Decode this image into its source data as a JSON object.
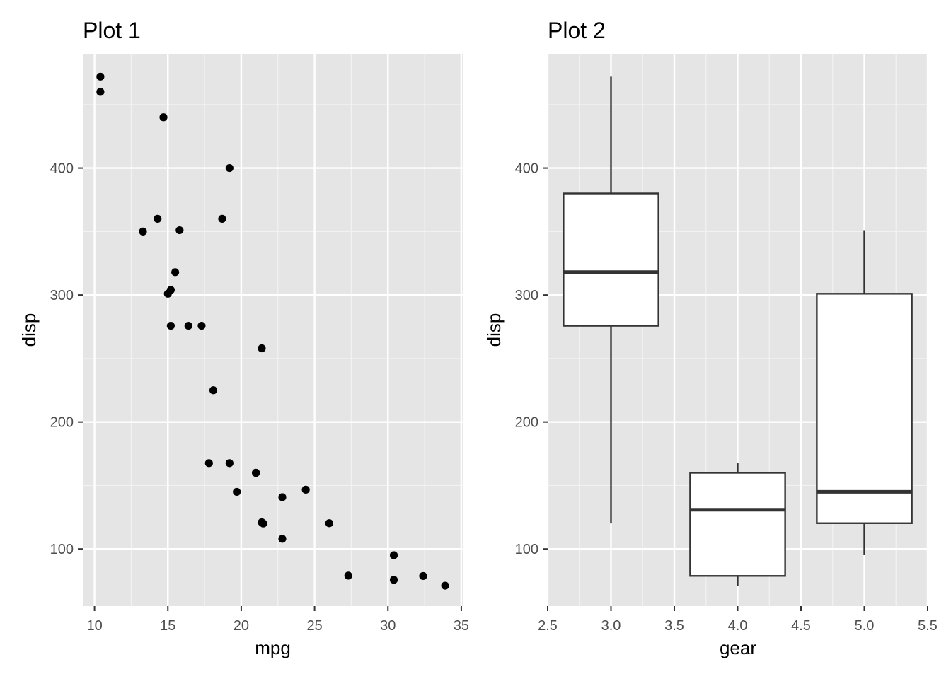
{
  "chart_data": [
    {
      "type": "scatter",
      "title": "Plot 1",
      "xlabel": "mpg",
      "ylabel": "disp",
      "xlim": [
        9.2,
        35.1
      ],
      "ylim": [
        55,
        490
      ],
      "x_ticks": [
        "10",
        "15",
        "20",
        "25",
        "30",
        "35"
      ],
      "y_ticks": [
        "100",
        "200",
        "300",
        "400"
      ],
      "grid": true,
      "panel_background": "#e5e5e5",
      "point_color": "#000000",
      "points": [
        {
          "x": 21.0,
          "y": 160
        },
        {
          "x": 21.0,
          "y": 160
        },
        {
          "x": 22.8,
          "y": 108
        },
        {
          "x": 21.4,
          "y": 258
        },
        {
          "x": 18.7,
          "y": 360
        },
        {
          "x": 18.1,
          "y": 225
        },
        {
          "x": 14.3,
          "y": 360
        },
        {
          "x": 24.4,
          "y": 146.7
        },
        {
          "x": 22.8,
          "y": 140.8
        },
        {
          "x": 19.2,
          "y": 167.6
        },
        {
          "x": 17.8,
          "y": 167.6
        },
        {
          "x": 16.4,
          "y": 275.8
        },
        {
          "x": 17.3,
          "y": 275.8
        },
        {
          "x": 15.2,
          "y": 275.8
        },
        {
          "x": 10.4,
          "y": 472
        },
        {
          "x": 10.4,
          "y": 460
        },
        {
          "x": 14.7,
          "y": 440
        },
        {
          "x": 32.4,
          "y": 78.7
        },
        {
          "x": 30.4,
          "y": 75.7
        },
        {
          "x": 33.9,
          "y": 71.1
        },
        {
          "x": 21.5,
          "y": 120.1
        },
        {
          "x": 15.5,
          "y": 318
        },
        {
          "x": 15.2,
          "y": 304
        },
        {
          "x": 13.3,
          "y": 350
        },
        {
          "x": 19.2,
          "y": 400
        },
        {
          "x": 27.3,
          "y": 79
        },
        {
          "x": 26.0,
          "y": 120.3
        },
        {
          "x": 30.4,
          "y": 95.1
        },
        {
          "x": 15.8,
          "y": 351
        },
        {
          "x": 19.7,
          "y": 145
        },
        {
          "x": 15.0,
          "y": 301
        },
        {
          "x": 21.4,
          "y": 121
        }
      ]
    },
    {
      "type": "boxplot",
      "title": "Plot 2",
      "xlabel": "gear",
      "ylabel": "disp",
      "xlim": [
        2.5,
        5.5
      ],
      "ylim": [
        55,
        490
      ],
      "x_ticks": [
        "2.5",
        "3.0",
        "3.5",
        "4.0",
        "4.5",
        "5.0",
        "5.5"
      ],
      "y_ticks": [
        "100",
        "200",
        "300",
        "400"
      ],
      "grid": true,
      "panel_background": "#e5e5e5",
      "box_fill": "#ffffff",
      "box_stroke": "#333333",
      "boxes": [
        {
          "x": 3.0,
          "min": 120.1,
          "q1": 275.8,
          "median": 318,
          "q3": 380,
          "max": 472
        },
        {
          "x": 4.0,
          "min": 71.1,
          "q1": 78.8,
          "median": 130.9,
          "q3": 160,
          "max": 167.6
        },
        {
          "x": 5.0,
          "min": 95.1,
          "q1": 120.3,
          "median": 145,
          "q3": 301,
          "max": 351
        }
      ]
    }
  ]
}
